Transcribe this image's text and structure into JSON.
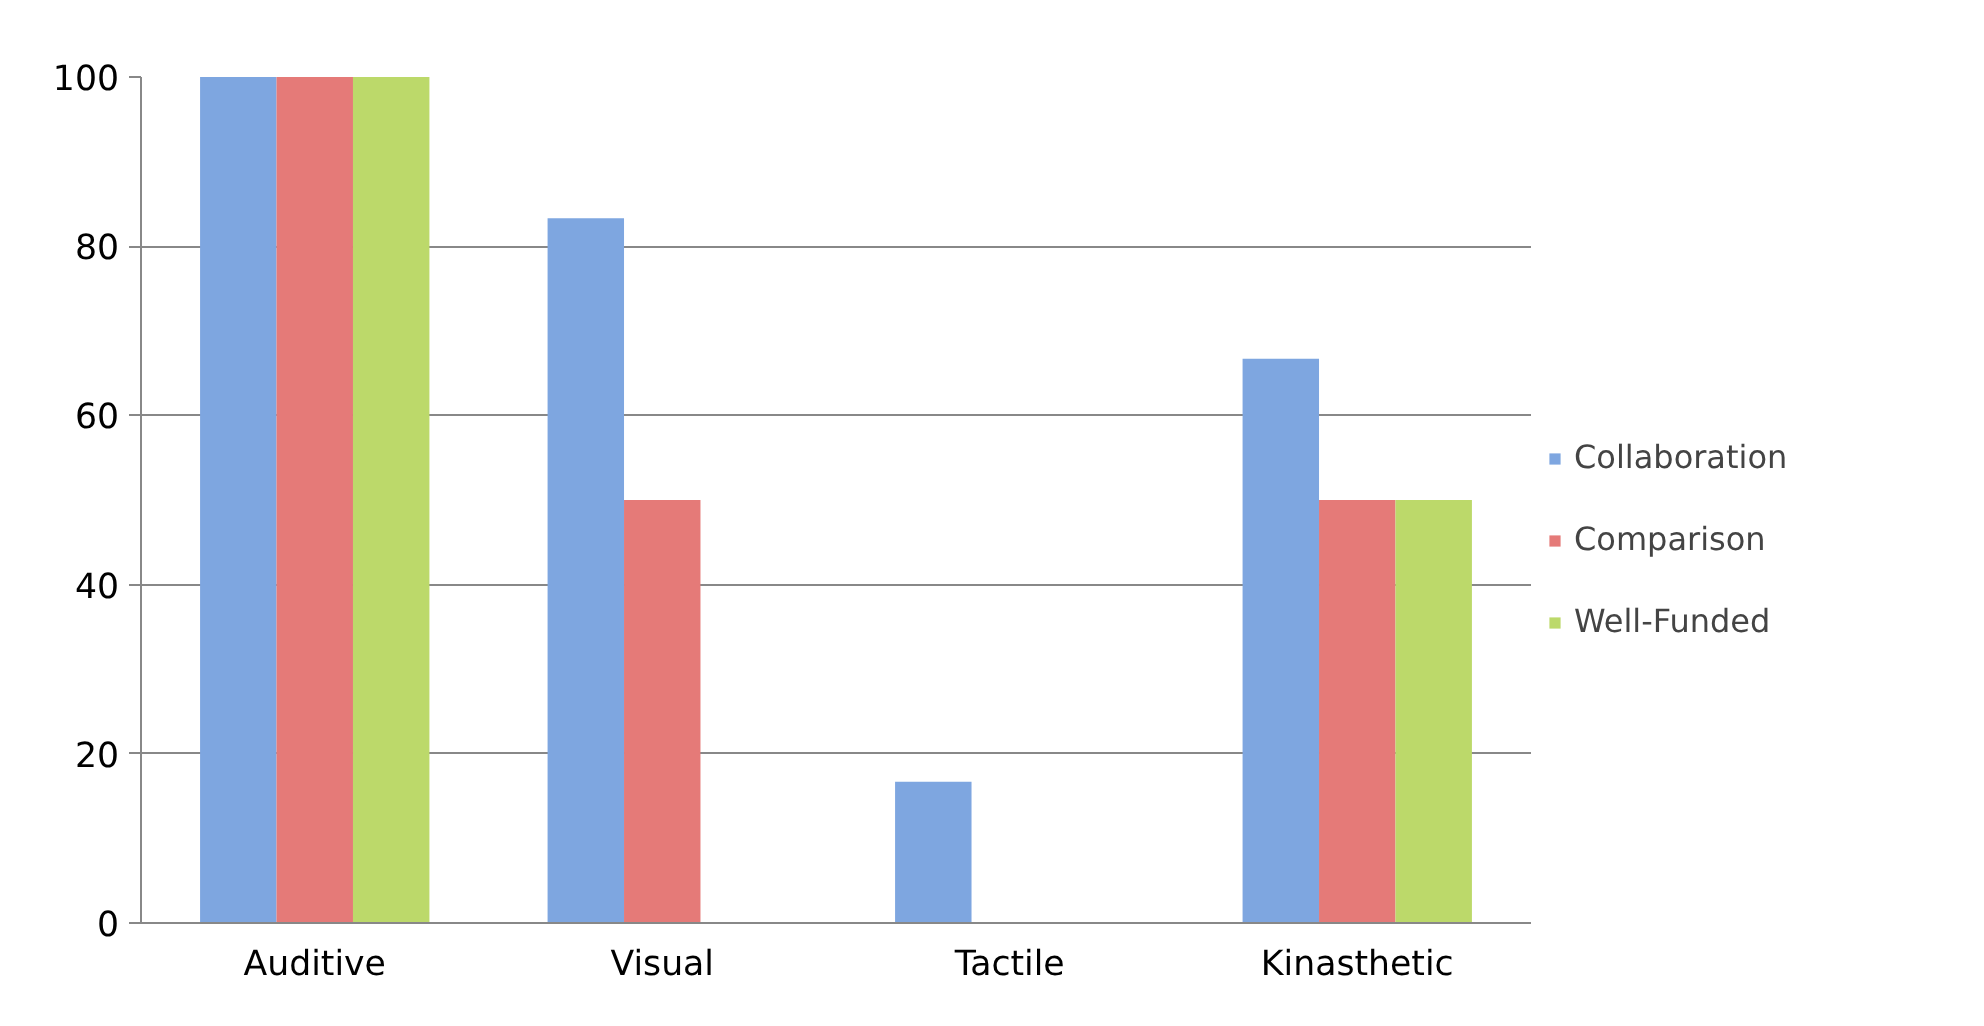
{
  "chart_data": {
    "type": "bar",
    "categories": [
      "Auditive",
      "Visual",
      "Tactile",
      "Kinasthetic"
    ],
    "series": [
      {
        "name": "Collaboration",
        "color": "#7ea6e0",
        "values": [
          100,
          83.3,
          16.7,
          66.7
        ]
      },
      {
        "name": "Comparison",
        "color": "#e57a78",
        "values": [
          100,
          50,
          0,
          50
        ]
      },
      {
        "name": "Well-Funded",
        "color": "#bcd96a",
        "values": [
          100,
          0,
          0,
          50
        ]
      }
    ],
    "ylim": [
      0,
      100
    ],
    "yticks": [
      0,
      20,
      40,
      60,
      80,
      100
    ],
    "grid": "y",
    "legend": "right"
  }
}
